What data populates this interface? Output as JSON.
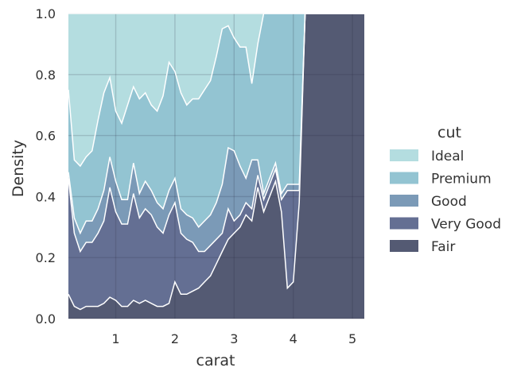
{
  "chart_data": {
    "type": "area",
    "stacking": "fill",
    "xlabel": "carat",
    "ylabel": "Density",
    "xlim": [
      0.2,
      5.2
    ],
    "ylim": [
      0,
      1
    ],
    "x_ticks": [
      1,
      2,
      3,
      4,
      5
    ],
    "y_ticks": [
      "0.0",
      "0.2",
      "0.4",
      "0.6",
      "0.8",
      "1.0"
    ],
    "grid": true,
    "legend": {
      "title": "cut",
      "placement": "right",
      "entries": [
        "Ideal",
        "Premium",
        "Good",
        "Very Good",
        "Fair"
      ]
    },
    "x": [
      0.2,
      0.3,
      0.4,
      0.5,
      0.6,
      0.7,
      0.8,
      0.9,
      1.0,
      1.1,
      1.2,
      1.3,
      1.4,
      1.5,
      1.6,
      1.7,
      1.8,
      1.9,
      2.0,
      2.1,
      2.2,
      2.3,
      2.4,
      2.5,
      2.6,
      2.7,
      2.8,
      2.9,
      3.0,
      3.1,
      3.2,
      3.3,
      3.4,
      3.5,
      3.6,
      3.7,
      3.8,
      3.9,
      4.0,
      4.1,
      4.2,
      4.3,
      4.4,
      4.6,
      4.8,
      5.0,
      5.2
    ],
    "series": [
      {
        "name": "Fair",
        "color": "#545a73",
        "values": [
          0.08,
          0.04,
          0.03,
          0.04,
          0.04,
          0.04,
          0.05,
          0.07,
          0.06,
          0.04,
          0.04,
          0.06,
          0.05,
          0.06,
          0.05,
          0.04,
          0.04,
          0.05,
          0.12,
          0.08,
          0.08,
          0.09,
          0.1,
          0.12,
          0.14,
          0.18,
          0.22,
          0.26,
          0.28,
          0.3,
          0.34,
          0.32,
          0.43,
          0.35,
          0.4,
          0.45,
          0.35,
          0.1,
          0.12,
          0.38,
          1.0,
          1.0,
          1.0,
          1.0,
          1.0,
          1.0,
          1.0
        ]
      },
      {
        "name": "Very Good",
        "color": "#646f93",
        "values": [
          0.38,
          0.24,
          0.19,
          0.21,
          0.21,
          0.24,
          0.27,
          0.36,
          0.29,
          0.27,
          0.27,
          0.35,
          0.28,
          0.3,
          0.29,
          0.26,
          0.24,
          0.29,
          0.26,
          0.2,
          0.18,
          0.16,
          0.12,
          0.1,
          0.1,
          0.08,
          0.06,
          0.1,
          0.04,
          0.04,
          0.04,
          0.04,
          0.04,
          0.04,
          0.04,
          0.04,
          0.04,
          0.32,
          0.3,
          0.04,
          0.0,
          0.0,
          0.0,
          0.0,
          0.0,
          0.0,
          0.0
        ]
      },
      {
        "name": "Good",
        "color": "#7b9ab7",
        "values": [
          0.02,
          0.05,
          0.06,
          0.07,
          0.07,
          0.08,
          0.1,
          0.1,
          0.1,
          0.08,
          0.08,
          0.1,
          0.08,
          0.09,
          0.08,
          0.08,
          0.08,
          0.08,
          0.08,
          0.08,
          0.08,
          0.08,
          0.08,
          0.1,
          0.1,
          0.12,
          0.16,
          0.2,
          0.23,
          0.16,
          0.08,
          0.16,
          0.05,
          0.02,
          0.02,
          0.02,
          0.02,
          0.02,
          0.02,
          0.02,
          0.0,
          0.0,
          0.0,
          0.0,
          0.0,
          0.0,
          0.0
        ]
      },
      {
        "name": "Premium",
        "color": "#93c4d2",
        "values": [
          0.27,
          0.19,
          0.22,
          0.21,
          0.23,
          0.29,
          0.32,
          0.26,
          0.23,
          0.25,
          0.31,
          0.25,
          0.31,
          0.29,
          0.28,
          0.3,
          0.37,
          0.42,
          0.35,
          0.38,
          0.36,
          0.39,
          0.42,
          0.43,
          0.44,
          0.48,
          0.51,
          0.4,
          0.37,
          0.39,
          0.43,
          0.25,
          0.38,
          0.59,
          0.54,
          0.49,
          0.59,
          0.56,
          0.56,
          0.56,
          0.0,
          0.0,
          0.0,
          0.0,
          0.0,
          0.0,
          0.0
        ]
      },
      {
        "name": "Ideal",
        "color": "#b4dde0",
        "values": [
          0.25,
          0.48,
          0.5,
          0.47,
          0.45,
          0.35,
          0.26,
          0.21,
          0.32,
          0.36,
          0.3,
          0.24,
          0.28,
          0.26,
          0.3,
          0.32,
          0.27,
          0.16,
          0.19,
          0.26,
          0.3,
          0.28,
          0.28,
          0.25,
          0.22,
          0.14,
          0.05,
          0.04,
          0.08,
          0.11,
          0.11,
          0.23,
          0.1,
          0.0,
          0.0,
          0.0,
          0.0,
          0.0,
          0.0,
          0.0,
          0.0,
          0.0,
          0.0,
          0.0,
          0.0,
          0.0,
          0.0
        ]
      }
    ]
  }
}
